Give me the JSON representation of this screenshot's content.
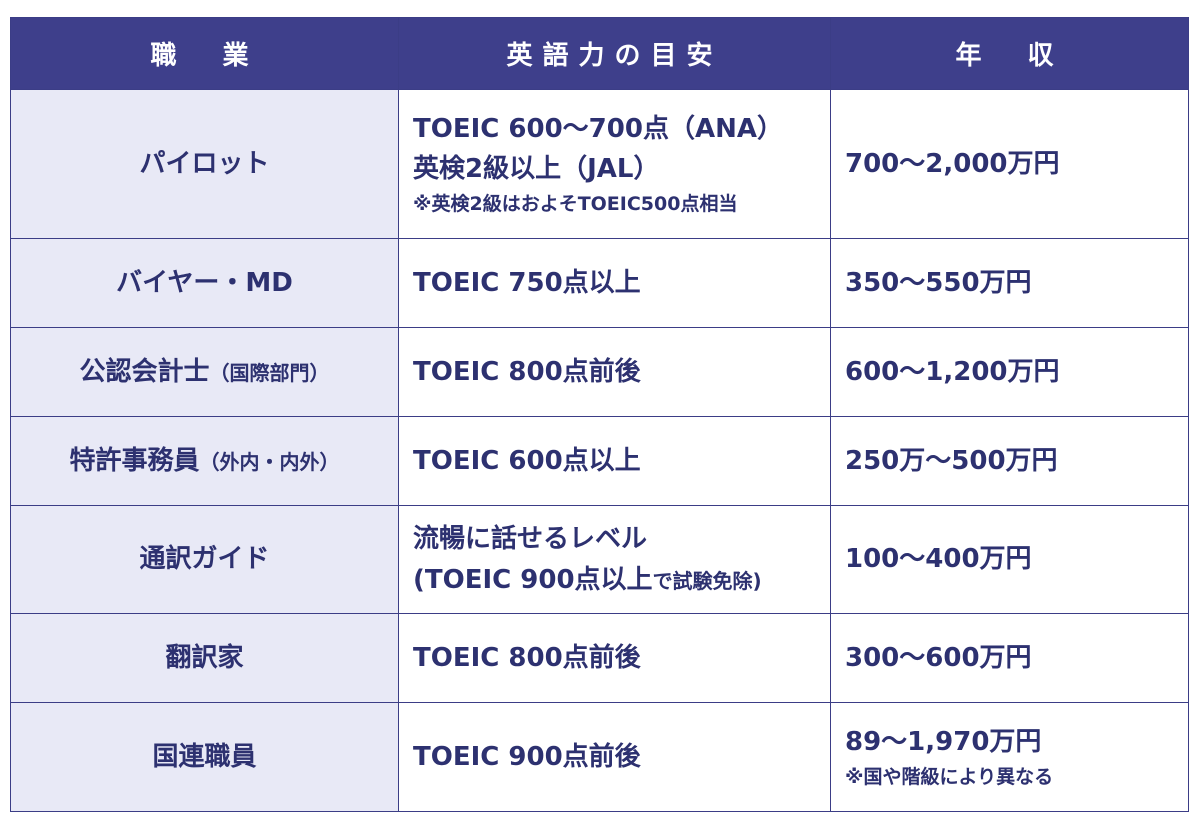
{
  "table": {
    "header": [
      "職　業",
      "英語力の目安",
      "年　収"
    ],
    "rows": [
      [
        {
          "lines": [
            [
              "パイロット"
            ]
          ]
        },
        {
          "lines": [
            [
              "TOEIC 600〜700点（ANA）"
            ],
            [
              "英検2級以上（JAL）"
            ]
          ],
          "note": "※英検2級はおよそTOEIC500点相当"
        },
        {
          "lines": [
            [
              "700〜2,000万円"
            ]
          ]
        }
      ],
      [
        {
          "lines": [
            [
              "バイヤー・MD"
            ]
          ]
        },
        {
          "lines": [
            [
              "TOEIC 750点以上"
            ]
          ]
        },
        {
          "lines": [
            [
              "350〜550万円"
            ]
          ]
        }
      ],
      [
        {
          "lines": [
            [
              "公認会計士",
              "（国際部門）"
            ]
          ]
        },
        {
          "lines": [
            [
              "TOEIC 800点前後"
            ]
          ]
        },
        {
          "lines": [
            [
              "600〜1,200万円"
            ]
          ]
        }
      ],
      [
        {
          "lines": [
            [
              "特許事務員",
              "（外内・内外）"
            ]
          ]
        },
        {
          "lines": [
            [
              "TOEIC 600点以上"
            ]
          ]
        },
        {
          "lines": [
            [
              "250万〜500万円"
            ]
          ]
        }
      ],
      [
        {
          "lines": [
            [
              "通訳ガイド"
            ]
          ]
        },
        {
          "lines": [
            [
              "流暢に話せるレベル"
            ],
            [
              "(TOEIC 900点以上",
              "で試験免除)"
            ]
          ]
        },
        {
          "lines": [
            [
              "100〜400万円"
            ]
          ]
        }
      ],
      [
        {
          "lines": [
            [
              "翻訳家"
            ]
          ]
        },
        {
          "lines": [
            [
              "TOEIC 800点前後"
            ]
          ]
        },
        {
          "lines": [
            [
              "300〜600万円"
            ]
          ]
        }
      ],
      [
        {
          "lines": [
            [
              "国連職員"
            ]
          ]
        },
        {
          "lines": [
            [
              "TOEIC 900点前後"
            ]
          ]
        },
        {
          "lines": [
            [
              "89〜1,970万円"
            ]
          ],
          "note": "※国や階級により異なる"
        }
      ]
    ]
  }
}
